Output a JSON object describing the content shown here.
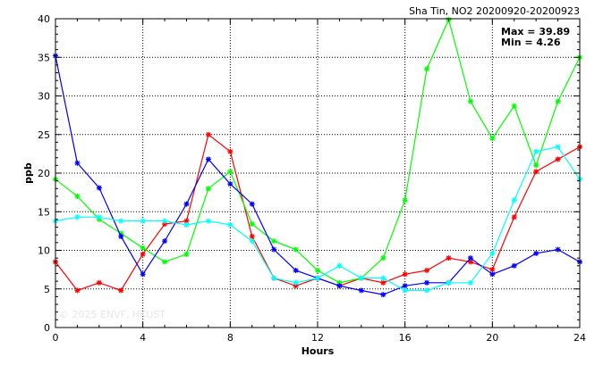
{
  "chart_data": {
    "type": "line",
    "title": "Sha Tin, NO2 20200920-20200923",
    "xlabel": "Hours",
    "ylabel": "ppb",
    "xlim": [
      0,
      24
    ],
    "ylim": [
      0,
      40
    ],
    "xticks": [
      0,
      4,
      8,
      12,
      16,
      20,
      24
    ],
    "yticks": [
      0,
      5,
      10,
      15,
      20,
      25,
      30,
      35,
      40
    ],
    "grid": true,
    "stats": {
      "max": "Max = 39.89",
      "min": "Min =  4.26"
    },
    "watermark": "© 2025  ENVF, HKUST",
    "series": [
      {
        "color": "#ff0000",
        "x": [
          0,
          1,
          2,
          3,
          4,
          5,
          6,
          7,
          8,
          9,
          10,
          11,
          12,
          13,
          14,
          15,
          16,
          17,
          18,
          19,
          20,
          21,
          22,
          23,
          24
        ],
        "values": [
          8.5,
          4.8,
          5.8,
          4.8,
          9.5,
          13.4,
          13.8,
          25.0,
          22.8,
          11.8,
          6.4,
          5.4,
          6.4,
          5.4,
          6.4,
          5.8,
          6.9,
          7.4,
          9.0,
          8.5,
          7.5,
          14.3,
          20.2,
          21.8,
          23.4
        ]
      },
      {
        "color": "#00ff00",
        "x": [
          0,
          1,
          2,
          3,
          4,
          5,
          6,
          7,
          8,
          9,
          10,
          11,
          12,
          13,
          14,
          15,
          16,
          17,
          18,
          19,
          20,
          21,
          22,
          23,
          24
        ],
        "values": [
          19.2,
          17.0,
          14.0,
          12.2,
          10.3,
          8.5,
          9.5,
          18.0,
          20.2,
          13.4,
          11.2,
          10.1,
          7.4,
          5.8,
          6.4,
          9.0,
          16.5,
          33.5,
          39.89,
          29.3,
          24.5,
          28.7,
          21.0,
          29.3,
          35.0
        ]
      },
      {
        "color": "#0000ff",
        "x": [
          0,
          1,
          2,
          3,
          4,
          5,
          6,
          7,
          8,
          9,
          10,
          11,
          12,
          13,
          14,
          15,
          16,
          17,
          18,
          19,
          20,
          21,
          22,
          23,
          24
        ],
        "values": [
          35.2,
          21.3,
          18.1,
          11.8,
          6.9,
          11.2,
          16.0,
          21.8,
          18.6,
          16.0,
          10.1,
          7.4,
          6.4,
          5.4,
          4.8,
          4.26,
          5.4,
          5.8,
          5.8,
          9.0,
          6.9,
          8.0,
          9.6,
          10.1,
          8.5
        ]
      },
      {
        "color": "#00ffff",
        "x": [
          0,
          1,
          2,
          3,
          4,
          5,
          6,
          7,
          8,
          9,
          10,
          11,
          12,
          13,
          14,
          15,
          16,
          17,
          18,
          19,
          20,
          21,
          22,
          23,
          24
        ],
        "values": [
          13.8,
          14.3,
          14.3,
          13.8,
          13.8,
          13.8,
          13.3,
          13.8,
          13.3,
          11.2,
          6.4,
          5.8,
          6.4,
          8.0,
          6.4,
          6.4,
          4.8,
          4.8,
          5.8,
          5.8,
          9.6,
          16.5,
          22.8,
          23.4,
          19.2
        ]
      }
    ]
  }
}
